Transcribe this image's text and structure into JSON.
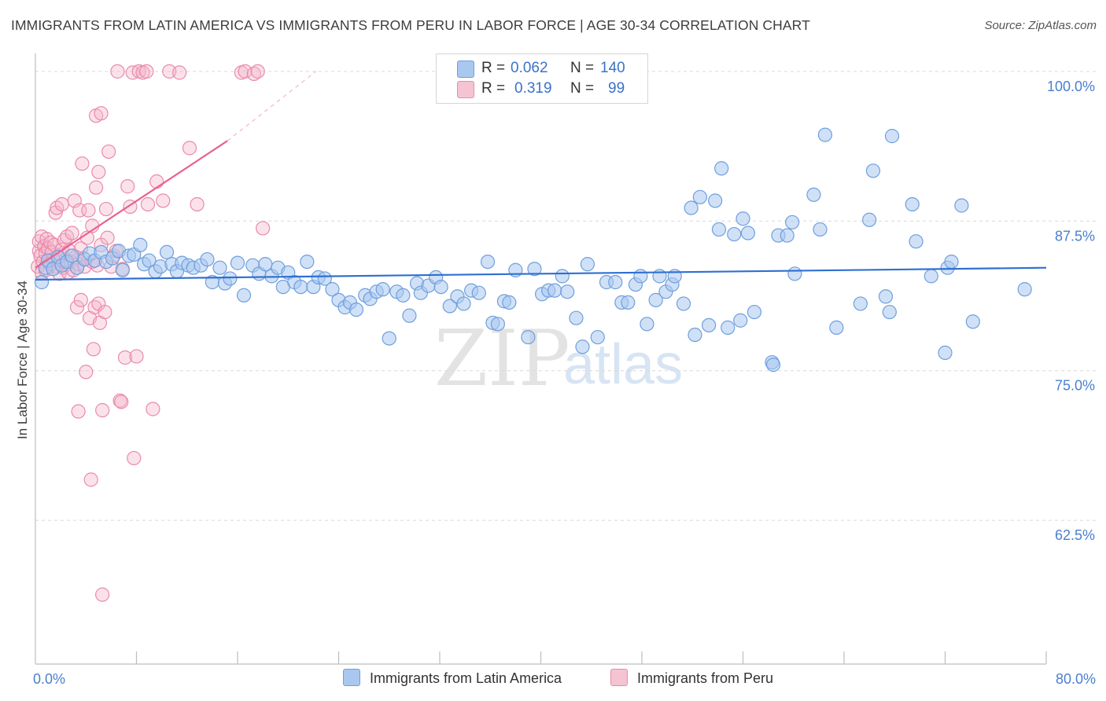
{
  "title": "IMMIGRANTS FROM LATIN AMERICA VS IMMIGRANTS FROM PERU IN LABOR FORCE | AGE 30-34 CORRELATION CHART",
  "source": "Source: ZipAtlas.com",
  "watermark": {
    "zip": "ZIP",
    "atlas": "atlas"
  },
  "legend_top": {
    "rows": [
      {
        "r_label": "R =",
        "r_value": "0.062",
        "n_label": "N =",
        "n_value": "140",
        "color": "#a9c8f0"
      },
      {
        "r_label": "R =",
        "r_value": "0.319",
        "n_label": "N =",
        "n_value": "99",
        "color": "#f6b6cb"
      }
    ]
  },
  "legend_bottom": [
    {
      "label": "Immigrants from Latin America",
      "color": "#a9c8f0"
    },
    {
      "label": "Immigrants from Peru",
      "color": "#f6b6cb"
    }
  ],
  "colors": {
    "blue_line": "#2f6fd0",
    "pink_line": "#e8628f",
    "axis_text": "#4a7fd0"
  },
  "chart_data": {
    "type": "scatter",
    "title": "IMMIGRANTS FROM LATIN AMERICA VS IMMIGRANTS FROM PERU IN LABOR FORCE | AGE 30-34 CORRELATION CHART",
    "xlabel": "",
    "ylabel": "In Labor Force | Age 30-34",
    "xlim": [
      0,
      80
    ],
    "ylim": [
      50.5,
      101.5
    ],
    "x_tick_labels": [
      "0.0%",
      "80.0%"
    ],
    "y_ticks": [
      62.5,
      75.0,
      87.5,
      100.0
    ],
    "y_tick_labels": [
      "62.5%",
      "75.0%",
      "87.5%",
      "100.0%"
    ],
    "grid": true,
    "series": [
      {
        "name": "Immigrants from Latin America",
        "R": 0.062,
        "N": 140,
        "trend": {
          "x": [
            0,
            80
          ],
          "y": [
            82.6,
            83.6
          ]
        },
        "points": [
          [
            0.5,
            82.4
          ],
          [
            0.8,
            83.6
          ],
          [
            1.0,
            84.2
          ],
          [
            1.4,
            83.5
          ],
          [
            1.8,
            84.5
          ],
          [
            2.1,
            83.8
          ],
          [
            2.5,
            84.1
          ],
          [
            2.9,
            84.6
          ],
          [
            3.3,
            83.6
          ],
          [
            3.9,
            84.3
          ],
          [
            4.3,
            84.8
          ],
          [
            4.7,
            84.2
          ],
          [
            5.2,
            84.9
          ],
          [
            5.6,
            84.1
          ],
          [
            6.1,
            84.4
          ],
          [
            6.6,
            85.0
          ],
          [
            6.9,
            83.4
          ],
          [
            7.4,
            84.6
          ],
          [
            7.8,
            84.7
          ],
          [
            8.3,
            85.5
          ],
          [
            8.6,
            83.9
          ],
          [
            9.0,
            84.2
          ],
          [
            9.5,
            83.3
          ],
          [
            9.9,
            83.7
          ],
          [
            10.4,
            84.9
          ],
          [
            10.8,
            83.9
          ],
          [
            11.2,
            83.3
          ],
          [
            11.6,
            84.0
          ],
          [
            12.1,
            83.8
          ],
          [
            12.5,
            83.6
          ],
          [
            13.1,
            83.8
          ],
          [
            13.6,
            84.3
          ],
          [
            14.0,
            82.4
          ],
          [
            14.6,
            83.6
          ],
          [
            15.0,
            82.3
          ],
          [
            15.4,
            82.7
          ],
          [
            16.0,
            84.0
          ],
          [
            16.5,
            81.3
          ],
          [
            17.2,
            83.8
          ],
          [
            17.7,
            83.1
          ],
          [
            18.2,
            83.9
          ],
          [
            18.7,
            82.9
          ],
          [
            19.2,
            83.6
          ],
          [
            19.6,
            82.0
          ],
          [
            20.0,
            83.2
          ],
          [
            20.5,
            82.4
          ],
          [
            21.0,
            82.0
          ],
          [
            21.5,
            84.1
          ],
          [
            22.0,
            82.0
          ],
          [
            22.4,
            82.8
          ],
          [
            22.9,
            82.7
          ],
          [
            23.5,
            81.8
          ],
          [
            24.0,
            80.9
          ],
          [
            24.5,
            80.3
          ],
          [
            24.9,
            80.7
          ],
          [
            25.4,
            80.1
          ],
          [
            26.1,
            81.3
          ],
          [
            26.5,
            81.0
          ],
          [
            27.0,
            81.6
          ],
          [
            27.5,
            81.8
          ],
          [
            28.0,
            77.7
          ],
          [
            28.6,
            81.6
          ],
          [
            29.1,
            81.3
          ],
          [
            29.6,
            79.6
          ],
          [
            30.2,
            82.3
          ],
          [
            30.5,
            81.5
          ],
          [
            31.1,
            82.1
          ],
          [
            31.7,
            82.8
          ],
          [
            32.1,
            82.0
          ],
          [
            32.8,
            80.4
          ],
          [
            33.4,
            81.2
          ],
          [
            33.9,
            80.6
          ],
          [
            34.5,
            81.7
          ],
          [
            35.1,
            81.5
          ],
          [
            35.8,
            84.1
          ],
          [
            36.2,
            79.0
          ],
          [
            36.6,
            78.9
          ],
          [
            37.1,
            80.8
          ],
          [
            37.5,
            80.7
          ],
          [
            38.0,
            83.4
          ],
          [
            39.0,
            77.8
          ],
          [
            39.5,
            83.5
          ],
          [
            40.1,
            81.4
          ],
          [
            40.6,
            81.7
          ],
          [
            41.1,
            81.7
          ],
          [
            41.7,
            82.9
          ],
          [
            42.1,
            81.6
          ],
          [
            42.8,
            79.4
          ],
          [
            43.3,
            77.0
          ],
          [
            43.7,
            83.9
          ],
          [
            44.5,
            77.8
          ],
          [
            45.2,
            82.4
          ],
          [
            45.9,
            82.4
          ],
          [
            46.4,
            80.7
          ],
          [
            46.9,
            80.7
          ],
          [
            47.5,
            82.2
          ],
          [
            47.9,
            82.9
          ],
          [
            48.4,
            78.9
          ],
          [
            49.1,
            80.9
          ],
          [
            49.4,
            82.9
          ],
          [
            49.9,
            81.6
          ],
          [
            50.4,
            82.2
          ],
          [
            50.6,
            82.9
          ],
          [
            51.3,
            80.6
          ],
          [
            51.9,
            88.6
          ],
          [
            52.2,
            78.0
          ],
          [
            52.6,
            89.5
          ],
          [
            53.3,
            78.8
          ],
          [
            53.8,
            89.2
          ],
          [
            54.1,
            86.8
          ],
          [
            54.3,
            91.9
          ],
          [
            54.8,
            78.6
          ],
          [
            55.3,
            86.4
          ],
          [
            55.8,
            79.2
          ],
          [
            56.0,
            87.7
          ],
          [
            56.4,
            86.5
          ],
          [
            56.9,
            79.9
          ],
          [
            58.3,
            75.7
          ],
          [
            58.4,
            75.5
          ],
          [
            58.8,
            86.3
          ],
          [
            59.5,
            86.3
          ],
          [
            59.9,
            87.4
          ],
          [
            60.1,
            83.1
          ],
          [
            61.6,
            89.7
          ],
          [
            62.1,
            86.8
          ],
          [
            62.5,
            94.7
          ],
          [
            63.4,
            78.6
          ],
          [
            65.3,
            80.6
          ],
          [
            66.0,
            87.6
          ],
          [
            66.3,
            91.7
          ],
          [
            67.3,
            81.2
          ],
          [
            67.6,
            79.9
          ],
          [
            67.8,
            94.6
          ],
          [
            69.4,
            88.9
          ],
          [
            69.7,
            85.8
          ],
          [
            70.9,
            82.9
          ],
          [
            72.0,
            76.5
          ],
          [
            72.2,
            83.6
          ],
          [
            72.5,
            84.1
          ],
          [
            73.3,
            88.8
          ],
          [
            74.2,
            79.1
          ],
          [
            78.3,
            81.8
          ]
        ]
      },
      {
        "name": "Immigrants from Peru",
        "R": 0.319,
        "N": 99,
        "trend": {
          "x": [
            0,
            15.2
          ],
          "y": [
            83.6,
            94.2
          ],
          "dashed_extension": {
            "x": [
              15.2,
              22.2
            ],
            "y": [
              94.2,
              100.0
            ]
          }
        },
        "points": [
          [
            0.2,
            83.7
          ],
          [
            0.3,
            85.0
          ],
          [
            0.3,
            85.8
          ],
          [
            0.4,
            84.6
          ],
          [
            0.5,
            83.2
          ],
          [
            0.5,
            86.2
          ],
          [
            0.6,
            84.1
          ],
          [
            0.7,
            85.4
          ],
          [
            0.8,
            84.8
          ],
          [
            0.8,
            83.4
          ],
          [
            0.9,
            86.0
          ],
          [
            1.0,
            85.2
          ],
          [
            1.1,
            84.0
          ],
          [
            1.2,
            85.7
          ],
          [
            1.2,
            83.9
          ],
          [
            1.3,
            84.9
          ],
          [
            1.4,
            84.3
          ],
          [
            1.5,
            85.5
          ],
          [
            1.6,
            83.7
          ],
          [
            1.6,
            88.2
          ],
          [
            1.7,
            88.6
          ],
          [
            1.8,
            84.2
          ],
          [
            1.9,
            83.1
          ],
          [
            2.0,
            84.7
          ],
          [
            2.1,
            85.1
          ],
          [
            2.1,
            88.9
          ],
          [
            2.2,
            83.6
          ],
          [
            2.3,
            85.9
          ],
          [
            2.4,
            84.3
          ],
          [
            2.5,
            83.9
          ],
          [
            2.5,
            86.2
          ],
          [
            2.6,
            83.2
          ],
          [
            2.7,
            85.0
          ],
          [
            2.8,
            84.1
          ],
          [
            2.9,
            86.5
          ],
          [
            3.0,
            83.4
          ],
          [
            3.1,
            89.2
          ],
          [
            3.2,
            84.5
          ],
          [
            3.3,
            80.3
          ],
          [
            3.4,
            71.6
          ],
          [
            3.4,
            83.9
          ],
          [
            3.5,
            88.4
          ],
          [
            3.6,
            85.2
          ],
          [
            3.6,
            80.9
          ],
          [
            3.7,
            92.3
          ],
          [
            3.8,
            84.4
          ],
          [
            3.9,
            83.7
          ],
          [
            4.0,
            74.9
          ],
          [
            4.1,
            86.1
          ],
          [
            4.2,
            88.4
          ],
          [
            4.3,
            79.4
          ],
          [
            4.4,
            65.9
          ],
          [
            4.5,
            84.1
          ],
          [
            4.5,
            87.1
          ],
          [
            4.6,
            76.8
          ],
          [
            4.7,
            80.3
          ],
          [
            4.8,
            96.3
          ],
          [
            4.8,
            90.3
          ],
          [
            4.9,
            83.8
          ],
          [
            5.0,
            91.6
          ],
          [
            5.0,
            80.6
          ],
          [
            5.1,
            79.0
          ],
          [
            5.2,
            85.5
          ],
          [
            5.2,
            96.5
          ],
          [
            5.3,
            71.7
          ],
          [
            5.3,
            56.3
          ],
          [
            5.5,
            79.9
          ],
          [
            5.6,
            88.5
          ],
          [
            5.7,
            86.1
          ],
          [
            5.8,
            93.3
          ],
          [
            6.0,
            83.7
          ],
          [
            6.2,
            84.6
          ],
          [
            6.4,
            85.0
          ],
          [
            6.5,
            100.0
          ],
          [
            6.7,
            72.5
          ],
          [
            6.8,
            72.4
          ],
          [
            6.9,
            83.5
          ],
          [
            7.1,
            76.1
          ],
          [
            7.3,
            90.4
          ],
          [
            7.5,
            88.7
          ],
          [
            7.7,
            99.9
          ],
          [
            7.8,
            67.7
          ],
          [
            8.0,
            76.2
          ],
          [
            8.2,
            100.0
          ],
          [
            8.5,
            99.9
          ],
          [
            8.8,
            100.0
          ],
          [
            8.9,
            88.9
          ],
          [
            9.3,
            71.8
          ],
          [
            9.6,
            90.8
          ],
          [
            10.1,
            89.2
          ],
          [
            10.6,
            100.0
          ],
          [
            11.4,
            99.9
          ],
          [
            12.2,
            93.6
          ],
          [
            12.8,
            88.9
          ],
          [
            16.3,
            99.9
          ],
          [
            16.6,
            100.0
          ],
          [
            17.3,
            99.8
          ],
          [
            17.6,
            100.0
          ],
          [
            18.0,
            86.9
          ]
        ]
      }
    ]
  }
}
